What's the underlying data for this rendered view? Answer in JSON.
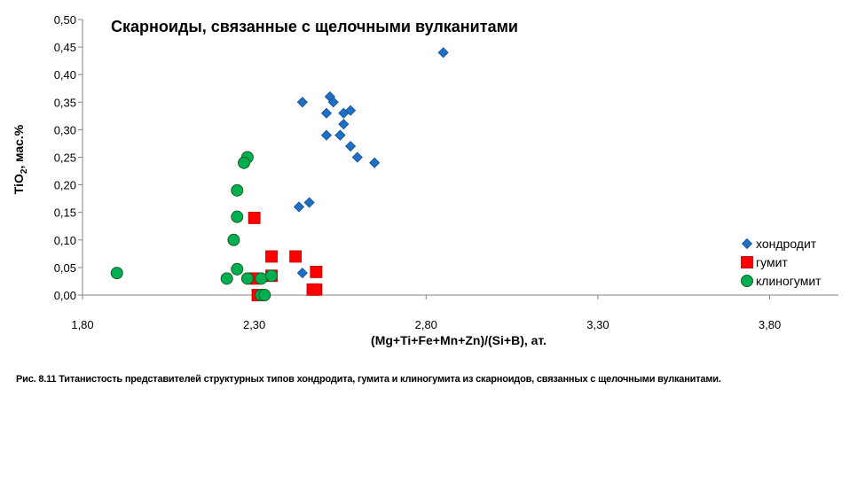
{
  "caption": "Рис. 8.11 Титанистость  представителей  структурных типов хондродита, гумита и клиногумита из скарноидов, связанных с щелочными вулканитами.",
  "chart_data": {
    "type": "scatter",
    "title": "Скарноиды, связанные с щелочными вулканитами",
    "xlabel": "(Mg+Ti+Fe+Mn+Zn)/(Si+B),  ат.",
    "ylabel_main": "TiO",
    "ylabel_sub": "2",
    "ylabel_rest": ", мас.%",
    "xlim": [
      1.8,
      4.0
    ],
    "ylim": [
      0,
      0.5
    ],
    "x_ticks": [
      1.8,
      2.3,
      2.8,
      3.3,
      3.8
    ],
    "x_tick_labels": [
      "1,80",
      "2,30",
      "2,80",
      "3,30",
      "3,80"
    ],
    "y_ticks": [
      0,
      0.05,
      0.1,
      0.15,
      0.2,
      0.25,
      0.3,
      0.35,
      0.4,
      0.45,
      0.5
    ],
    "y_tick_labels": [
      "0,00",
      "0,05",
      "0,10",
      "0,15",
      "0,20",
      "0,25",
      "0,30",
      "0,35",
      "0,40",
      "0,45",
      "0,50"
    ],
    "legend_position": "right",
    "series": [
      {
        "name": "хондродит",
        "marker": "diamond",
        "color": "#1F6FC5",
        "x": [
          2.85,
          2.52,
          2.53,
          2.51,
          2.56,
          2.58,
          2.56,
          2.55,
          2.51,
          2.55,
          2.58,
          2.6,
          2.65,
          2.44,
          2.46,
          2.43,
          2.44
        ],
        "y": [
          0.44,
          0.36,
          0.35,
          0.33,
          0.33,
          0.335,
          0.31,
          0.29,
          0.29,
          0.29,
          0.27,
          0.25,
          0.24,
          0.35,
          0.168,
          0.16,
          0.04
        ]
      },
      {
        "name": "гумит",
        "marker": "square",
        "color": "#FF0000",
        "x": [
          2.3,
          2.35,
          2.42,
          2.48,
          2.3,
          2.35,
          2.47,
          2.48,
          2.31
        ],
        "y": [
          0.14,
          0.07,
          0.07,
          0.042,
          0.03,
          0.035,
          0.01,
          0.01,
          0.0
        ]
      },
      {
        "name": "клиногумит",
        "marker": "circle",
        "color": "#00B050",
        "x": [
          1.9,
          2.28,
          2.27,
          2.25,
          2.25,
          2.24,
          2.25,
          2.22,
          2.28,
          2.32,
          2.35,
          2.32,
          2.33
        ],
        "y": [
          0.04,
          0.25,
          0.24,
          0.19,
          0.142,
          0.1,
          0.047,
          0.03,
          0.03,
          0.03,
          0.035,
          0.0,
          0.0
        ]
      }
    ]
  }
}
